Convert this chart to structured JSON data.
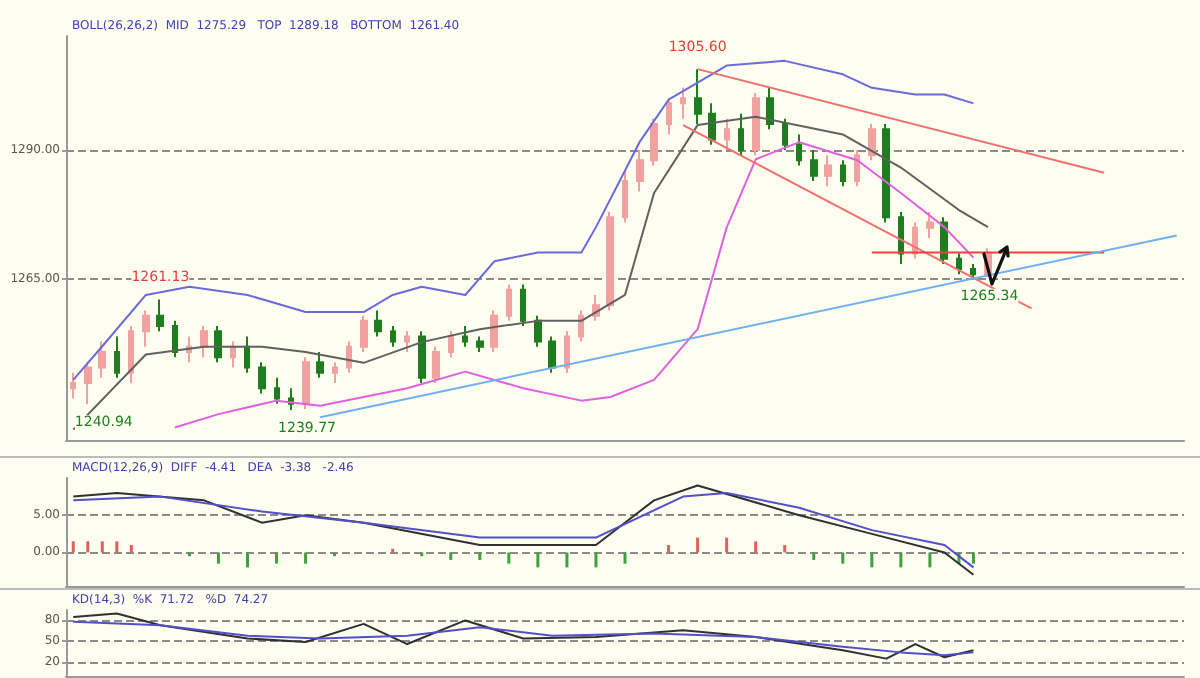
{
  "chart_data": [
    {
      "type": "candlestick",
      "colors": [
        "#f2a0a0",
        "#f2a0a0",
        "#f2a0a0",
        "#1e7d1e",
        "#f2a0a0",
        "#f2a0a0",
        "#1e7d1e",
        "#1e7d1e",
        "#f2a0a0",
        "#f2a0a0",
        "#1e7d1e",
        "#f2a0a0",
        "#1e7d1e",
        "#1e7d1e",
        "#1e7d1e",
        "#1e7d1e",
        "#f2a0a0",
        "#1e7d1e",
        "#f2a0a0",
        "#f2a0a0",
        "#f2a0a0",
        "#1e7d1e",
        "#1e7d1e",
        "#f2a0a0",
        "#1e7d1e",
        "#f2a0a0",
        "#f2a0a0",
        "#1e7d1e",
        "#1e7d1e",
        "#f2a0a0",
        "#f2a0a0",
        "#1e7d1e",
        "#1e7d1e",
        "#1e7d1e",
        "#f2a0a0",
        "#f2a0a0",
        "#f2a0a0",
        "#f2a0a0",
        "#f2a0a0",
        "#f2a0a0",
        "#f2a0a0",
        "#f2a0a0",
        "#f2a0a0",
        "#1e7d1e",
        "#1e7d1e",
        "#f2a0a0",
        "#1e7d1e",
        "#f2a0a0",
        "#1e7d1e",
        "#1e7d1e",
        "#1e7d1e",
        "#1e7d1e",
        "#f2a0a0",
        "#1e7d1e",
        "#f2a0a0",
        "#f2a0a0",
        "#1e7d1e",
        "#1e7d1e",
        "#f2a0a0",
        "#f2a0a0",
        "#1e7d1e",
        "#1e7d1e",
        "#1e7d1e",
        "#f2a0a0",
        null,
        null,
        null,
        null,
        null,
        null,
        null,
        null,
        null,
        null,
        null,
        null,
        null
      ],
      "grid": "y",
      "ylim": [
        1234,
        1312
      ],
      "yticks": [
        {
          "value": 1265,
          "label": "1265.00"
        },
        {
          "value": 1290,
          "label": "1290.00"
        }
      ],
      "categories": [
        null,
        null,
        null,
        null,
        null,
        null,
        null,
        null,
        null,
        null,
        null,
        null,
        null,
        null,
        null,
        null,
        null,
        null,
        null,
        null,
        null,
        null,
        null,
        null,
        null,
        null,
        null,
        null,
        null,
        null,
        null,
        null,
        null,
        null,
        null,
        null,
        null,
        null,
        null,
        null,
        null,
        null,
        null,
        null,
        null,
        null,
        null,
        null,
        null,
        null,
        null,
        null,
        null,
        null,
        null,
        null,
        null,
        null,
        null,
        null,
        null,
        null,
        null,
        null,
        null,
        null,
        null,
        null,
        null,
        null,
        null,
        null,
        null,
        null,
        null,
        null,
        null
      ],
      "ohlc": [
        [
          1244,
          1247,
          1242,
          1245
        ],
        [
          1245,
          1249,
          1240.94,
          1248
        ],
        [
          1248,
          1253,
          1246,
          1251
        ],
        [
          1251,
          1254,
          1246,
          1247
        ],
        [
          1247,
          1256,
          1245,
          1255
        ],
        [
          1255,
          1259,
          1252,
          1258
        ],
        [
          1258,
          1261.13,
          1255,
          1256
        ],
        [
          1256,
          1257,
          1250,
          1251
        ],
        [
          1251,
          1254,
          1249,
          1252
        ],
        [
          1252,
          1256,
          1250,
          1255
        ],
        [
          1255,
          1256,
          1249,
          1250
        ],
        [
          1250,
          1253,
          1248,
          1252
        ],
        [
          1252,
          1254,
          1247,
          1248
        ],
        [
          1248,
          1249,
          1243,
          1244
        ],
        [
          1244,
          1246,
          1241,
          1242
        ],
        [
          1242,
          1244,
          1239.77,
          1241
        ],
        [
          1241,
          1250,
          1240,
          1249
        ],
        [
          1249,
          1251,
          1246,
          1247
        ],
        [
          1247,
          1249,
          1245,
          1248
        ],
        [
          1248,
          1253,
          1247,
          1252
        ],
        [
          1252,
          1258,
          1251,
          1257
        ],
        [
          1257,
          1259,
          1254,
          1255
        ],
        [
          1255,
          1256,
          1252,
          1253
        ],
        [
          1253,
          1255,
          1251,
          1254
        ],
        [
          1254,
          1255,
          1245,
          1246
        ],
        [
          1246,
          1252,
          1245,
          1251
        ],
        [
          1251,
          1255,
          1250,
          1254
        ],
        [
          1254,
          1256,
          1252,
          1253
        ],
        [
          1253,
          1254,
          1251,
          1252
        ],
        [
          1252,
          1259,
          1251,
          1258
        ],
        [
          1258,
          1264,
          1257,
          1263
        ],
        [
          1263,
          1264,
          1256,
          1257
        ],
        [
          1257,
          1258,
          1252,
          1253
        ],
        [
          1253,
          1254,
          1247,
          1248
        ],
        [
          1248,
          1255,
          1247,
          1254
        ],
        [
          1254,
          1259,
          1253,
          1258
        ],
        [
          1258,
          1262,
          1257,
          1260
        ],
        [
          1260,
          1278,
          1259,
          1277
        ],
        [
          1277,
          1286,
          1276,
          1284
        ],
        [
          1284,
          1290,
          1282,
          1288
        ],
        [
          1288,
          1296,
          1287,
          1295
        ],
        [
          1295,
          1300,
          1293,
          1299
        ],
        [
          1299,
          1302,
          1296,
          1300
        ],
        [
          1300,
          1305.6,
          1295,
          1297
        ],
        [
          1297,
          1299,
          1291,
          1292
        ],
        [
          1292,
          1296,
          1290,
          1294
        ],
        [
          1294,
          1297,
          1289,
          1290
        ],
        [
          1290,
          1301,
          1289,
          1300
        ],
        [
          1300,
          1302,
          1294,
          1295
        ],
        [
          1295,
          1296,
          1290,
          1291
        ],
        [
          1291,
          1293,
          1287,
          1288
        ],
        [
          1288,
          1290,
          1284,
          1285
        ],
        [
          1285,
          1289,
          1283,
          1287
        ],
        [
          1287,
          1288,
          1283,
          1284
        ],
        [
          1284,
          1290,
          1283,
          1289
        ],
        [
          1289,
          1295,
          1288,
          1294
        ],
        [
          1294,
          1295,
          1276,
          1277
        ],
        [
          1277,
          1278,
          1268,
          1270
        ],
        [
          1270,
          1276,
          1269,
          1275
        ],
        [
          1275,
          1278,
          1273,
          1276
        ],
        [
          1276,
          1277,
          1268,
          1269
        ],
        [
          1269,
          1270,
          1266,
          1267
        ],
        [
          1267,
          1268,
          1265.34,
          1266
        ],
        [
          1266,
          1271,
          1265.5,
          1270
        ],
        null,
        null,
        null,
        null,
        null,
        null,
        null,
        null,
        null,
        null,
        null,
        null,
        null
      ],
      "series": [
        {
          "type": "line",
          "color": "#6a6ad8",
          "values": [
            1245.6,
            null,
            1252.1,
            null,
            null,
            1262,
            null,
            null,
            1263.6,
            null,
            null,
            null,
            1262,
            null,
            null,
            null,
            1258.7,
            null,
            null,
            null,
            1258.7,
            null,
            1262,
            null,
            1263.6,
            null,
            null,
            1262,
            null,
            1268.5,
            null,
            null,
            1270.2,
            null,
            null,
            1270.2,
            1275.1,
            null,
            null,
            1291.5,
            null,
            1299.7,
            null,
            null,
            null,
            1306.3,
            null,
            null,
            null,
            1307.2,
            null,
            null,
            null,
            1304.6,
            null,
            1302,
            null,
            null,
            1300.7,
            null,
            1300.7,
            null,
            1299,
            null,
            null,
            null,
            null,
            null,
            null,
            null,
            null,
            null,
            null,
            null,
            null,
            null,
            null
          ]
        },
        {
          "type": "line",
          "color": "#606060",
          "values": [
            1236,
            null,
            null,
            null,
            null,
            1250.5,
            null,
            null,
            null,
            1252,
            null,
            null,
            null,
            1252,
            null,
            null,
            1251,
            null,
            null,
            null,
            1248.9,
            null,
            null,
            null,
            1252.9,
            null,
            null,
            null,
            1255.4,
            null,
            null,
            null,
            1257,
            null,
            null,
            1257,
            null,
            null,
            1262,
            null,
            1281.7,
            null,
            null,
            1294.8,
            null,
            null,
            null,
            1296.4,
            null,
            null,
            null,
            null,
            null,
            1293,
            null,
            null,
            null,
            1286.6,
            null,
            null,
            null,
            1278.4,
            null,
            1275.1,
            null,
            null,
            null,
            null,
            null,
            null,
            null,
            null,
            null,
            null,
            null,
            null,
            null
          ]
        },
        {
          "type": "line",
          "color": "#e060e0",
          "values": [
            null,
            null,
            null,
            null,
            null,
            null,
            null,
            1236.4,
            null,
            null,
            1239,
            null,
            null,
            null,
            1241.6,
            null,
            null,
            1240.6,
            null,
            null,
            1242.3,
            null,
            null,
            1244,
            null,
            null,
            null,
            1247.2,
            null,
            1245.6,
            null,
            1244,
            null,
            null,
            null,
            1241.6,
            null,
            1242.3,
            null,
            null,
            1245.6,
            null,
            null,
            1255.4,
            null,
            1275,
            null,
            1288.2,
            null,
            null,
            1291.5,
            null,
            null,
            null,
            1288,
            null,
            null,
            1281.7,
            null,
            null,
            1275.1,
            null,
            1269.2,
            null,
            null,
            null,
            null,
            null,
            null,
            null,
            null,
            null,
            null,
            null,
            null,
            null,
            null
          ]
        },
        {
          "type": "line",
          "color": "#f07070",
          "values": [
            null,
            null,
            null,
            null,
            null,
            null,
            null,
            null,
            null,
            null,
            null,
            null,
            null,
            null,
            null,
            null,
            null,
            null,
            null,
            null,
            null,
            null,
            null,
            null,
            null,
            null,
            null,
            null,
            null,
            null,
            null,
            null,
            null,
            null,
            null,
            null,
            null,
            null,
            null,
            null,
            null,
            null,
            null,
            1305.6,
            null,
            null,
            null,
            null,
            null,
            null,
            null,
            null,
            null,
            null,
            null,
            null,
            null,
            null,
            null,
            null,
            null,
            null,
            null,
            null,
            null,
            null,
            null,
            null,
            null,
            null,
            null,
            1285.6,
            null,
            null,
            null,
            null,
            null
          ]
        },
        {
          "type": "line",
          "color": "#f07070",
          "values": [
            null,
            null,
            null,
            null,
            null,
            null,
            null,
            null,
            null,
            null,
            null,
            null,
            null,
            null,
            null,
            null,
            null,
            null,
            null,
            null,
            null,
            null,
            null,
            null,
            null,
            null,
            null,
            null,
            null,
            null,
            null,
            null,
            null,
            null,
            null,
            null,
            null,
            null,
            null,
            null,
            null,
            null,
            1294.8,
            null,
            null,
            null,
            null,
            null,
            null,
            null,
            null,
            null,
            null,
            null,
            null,
            null,
            null,
            null,
            null,
            null,
            null,
            null,
            null,
            null,
            null,
            null,
            1259.4,
            null,
            null,
            null,
            null,
            null,
            null,
            null,
            null,
            null,
            null
          ]
        },
        {
          "type": "line",
          "color": "#f04040",
          "values": [
            null,
            null,
            null,
            null,
            null,
            null,
            null,
            null,
            null,
            null,
            null,
            null,
            null,
            null,
            null,
            null,
            null,
            null,
            null,
            null,
            null,
            null,
            null,
            null,
            null,
            null,
            null,
            null,
            null,
            null,
            null,
            null,
            null,
            null,
            null,
            null,
            null,
            null,
            null,
            null,
            null,
            null,
            null,
            null,
            null,
            null,
            null,
            null,
            null,
            null,
            null,
            null,
            null,
            null,
            null,
            1270.2,
            null,
            null,
            null,
            null,
            null,
            null,
            null,
            null,
            null,
            null,
            null,
            null,
            null,
            null,
            null,
            1270.2,
            null,
            null,
            null,
            null,
            null
          ]
        },
        {
          "type": "line",
          "color": "#70b0f0",
          "values": [
            null,
            null,
            null,
            null,
            null,
            null,
            null,
            null,
            null,
            null,
            null,
            null,
            null,
            null,
            null,
            null,
            null,
            1238.4,
            null,
            null,
            null,
            null,
            null,
            null,
            null,
            null,
            null,
            null,
            null,
            null,
            null,
            null,
            null,
            null,
            null,
            null,
            null,
            null,
            null,
            null,
            null,
            null,
            null,
            null,
            null,
            null,
            null,
            null,
            null,
            null,
            null,
            null,
            null,
            null,
            null,
            null,
            null,
            null,
            null,
            null,
            null,
            null,
            null,
            null,
            null,
            null,
            null,
            null,
            null,
            null,
            null,
            null,
            null,
            null,
            null,
            null,
            1273.5
          ]
        }
      ],
      "annotations": [
        "BOLL(26,26,2)  MID  1275.29   TOP  1289.18   BOTTOM  1261.40",
        {
          "text": "1305.60",
          "y": 1305.6
        },
        {
          "text": "1261.13",
          "y": 1261.13
        },
        {
          "text": "1240.94",
          "y": 1240.94
        },
        {
          "text": "1239.77",
          "y": 1239.77
        },
        {
          "text": "1265.34",
          "y": 1265.34
        }
      ]
    },
    {
      "type": "line",
      "tick_labels": "y",
      "grid": "y",
      "ylim": [
        -4.5,
        10
      ],
      "yticks": [
        {
          "value": 0,
          "label": "0.00"
        },
        {
          "value": 5,
          "label": "5.00"
        }
      ],
      "categories": [
        null,
        null,
        null,
        null,
        null,
        null,
        null,
        null,
        null,
        null,
        null,
        null,
        null,
        null,
        null,
        null,
        null,
        null,
        null,
        null,
        null,
        null,
        null,
        null,
        null,
        null,
        null,
        null,
        null,
        null,
        null,
        null,
        null,
        null,
        null,
        null,
        null,
        null,
        null,
        null,
        null,
        null,
        null,
        null,
        null,
        null,
        null,
        null,
        null,
        null,
        null,
        null,
        null,
        null,
        null,
        null,
        null,
        null,
        null,
        null,
        null,
        null,
        null,
        null,
        null,
        null,
        null,
        null,
        null,
        null,
        null,
        null,
        null,
        null,
        null,
        null,
        null
      ],
      "series": [
        {
          "type": "bar",
          "color": "#e06060",
          "values": [
            1.5,
            1.5,
            1.5,
            1.5,
            1,
            null,
            null,
            null,
            null,
            null,
            null,
            null,
            null,
            null,
            null,
            null,
            null,
            null,
            null,
            null,
            null,
            null,
            0.5,
            null,
            null,
            null,
            null,
            null,
            null,
            null,
            null,
            null,
            null,
            null,
            null,
            null,
            null,
            null,
            null,
            null,
            null,
            1,
            null,
            2,
            null,
            2,
            null,
            1.5,
            null,
            1,
            null,
            null,
            null,
            null,
            null,
            null,
            null,
            null,
            null,
            null,
            null,
            null,
            null,
            null,
            null,
            null,
            null,
            null,
            null,
            null,
            null,
            null,
            null,
            null,
            null,
            null,
            null
          ]
        },
        {
          "type": "bar",
          "color": "#40a040",
          "values": [
            null,
            null,
            null,
            null,
            null,
            null,
            null,
            null,
            -0.5,
            null,
            -1.5,
            null,
            -2,
            null,
            -1.5,
            null,
            -1.5,
            null,
            -0.5,
            null,
            null,
            null,
            null,
            null,
            -0.5,
            null,
            -1,
            null,
            -1,
            null,
            -1.5,
            null,
            -2,
            null,
            -2,
            null,
            -2,
            null,
            -1.5,
            null,
            null,
            null,
            null,
            null,
            null,
            null,
            null,
            null,
            null,
            null,
            null,
            -1,
            null,
            -1.5,
            null,
            -2,
            null,
            -2,
            null,
            -2,
            null,
            -1.5,
            -1.5,
            null,
            null,
            null,
            null,
            null,
            null,
            null,
            null,
            null,
            null,
            null,
            null,
            null,
            null
          ]
        },
        {
          "type": "line",
          "color": "#303030",
          "values": [
            7.5,
            null,
            null,
            8,
            null,
            null,
            null,
            null,
            null,
            7,
            null,
            null,
            null,
            4,
            null,
            null,
            5,
            null,
            null,
            null,
            4,
            null,
            null,
            null,
            null,
            null,
            null,
            null,
            1,
            null,
            null,
            null,
            null,
            null,
            null,
            null,
            1,
            null,
            null,
            null,
            7,
            null,
            null,
            9,
            null,
            null,
            null,
            null,
            null,
            null,
            5,
            null,
            null,
            null,
            null,
            2.5,
            null,
            null,
            null,
            null,
            0,
            null,
            -3,
            null,
            null,
            null,
            null,
            null,
            null,
            null,
            null,
            null,
            null,
            null,
            null,
            null,
            null
          ]
        },
        {
          "type": "line",
          "color": "#5050c8",
          "values": [
            7,
            null,
            null,
            null,
            null,
            null,
            7.5,
            null,
            null,
            null,
            null,
            null,
            null,
            5.5,
            null,
            null,
            null,
            null,
            null,
            null,
            4,
            null,
            null,
            null,
            null,
            null,
            null,
            null,
            2,
            null,
            null,
            null,
            null,
            null,
            null,
            null,
            2,
            null,
            null,
            null,
            null,
            null,
            7.5,
            null,
            null,
            8,
            null,
            null,
            null,
            null,
            6,
            null,
            null,
            null,
            null,
            3,
            null,
            null,
            null,
            null,
            1,
            null,
            -2,
            null,
            null,
            null,
            null,
            null,
            null,
            null,
            null,
            null,
            null,
            null,
            null,
            null,
            null
          ]
        }
      ],
      "annotations": [
        "MACD(12,26,9)  DIFF  -4.41   DEA  -3.38   -2.46"
      ]
    },
    {
      "type": "line",
      "tick_labels": "y",
      "grid": "y",
      "ylim": [
        0,
        95
      ],
      "yticks": [
        20,
        50,
        80
      ],
      "categories": [
        null,
        null,
        null,
        null,
        null,
        null,
        null,
        null,
        null,
        null,
        null,
        null,
        null,
        null,
        null,
        null,
        null,
        null,
        null,
        null,
        null,
        null,
        null,
        null,
        null,
        null,
        null,
        null,
        null,
        null,
        null,
        null,
        null,
        null,
        null,
        null,
        null,
        null,
        null,
        null,
        null,
        null,
        null,
        null,
        null,
        null,
        null,
        null,
        null,
        null,
        null,
        null,
        null,
        null,
        null,
        null,
        null,
        null,
        null,
        null,
        null,
        null,
        null,
        null,
        null,
        null,
        null,
        null,
        null,
        null,
        null,
        null,
        null,
        null,
        null,
        null,
        null
      ],
      "series": [
        {
          "type": "line",
          "color": "#303030",
          "values": [
            85,
            null,
            null,
            90,
            null,
            null,
            73,
            null,
            null,
            null,
            null,
            null,
            54,
            null,
            null,
            null,
            49,
            null,
            null,
            null,
            75,
            null,
            null,
            46,
            null,
            null,
            null,
            80,
            null,
            null,
            null,
            54,
            null,
            null,
            null,
            null,
            56,
            null,
            null,
            null,
            null,
            null,
            66,
            null,
            null,
            null,
            null,
            56,
            null,
            null,
            null,
            null,
            null,
            37,
            null,
            null,
            25,
            null,
            46,
            null,
            27,
            null,
            37,
            null,
            null,
            null,
            null,
            null,
            null,
            null,
            null,
            null,
            null,
            null,
            null,
            null,
            null
          ]
        },
        {
          "type": "line",
          "color": "#5050c8",
          "values": [
            78,
            null,
            null,
            null,
            null,
            null,
            73,
            null,
            null,
            null,
            null,
            null,
            58,
            null,
            null,
            null,
            null,
            54,
            null,
            null,
            null,
            null,
            null,
            58,
            null,
            null,
            null,
            null,
            70,
            null,
            null,
            null,
            null,
            58,
            null,
            null,
            null,
            null,
            null,
            null,
            61,
            null,
            null,
            null,
            null,
            null,
            null,
            56,
            null,
            null,
            null,
            null,
            null,
            42,
            null,
            null,
            null,
            34,
            null,
            null,
            30,
            null,
            34,
            null,
            null,
            null,
            null,
            null,
            null,
            null,
            null,
            null,
            null,
            null,
            null,
            null,
            null
          ]
        }
      ],
      "annotations": [
        "KD(14,3)  %K  71.72   %D  74.27"
      ]
    }
  ]
}
